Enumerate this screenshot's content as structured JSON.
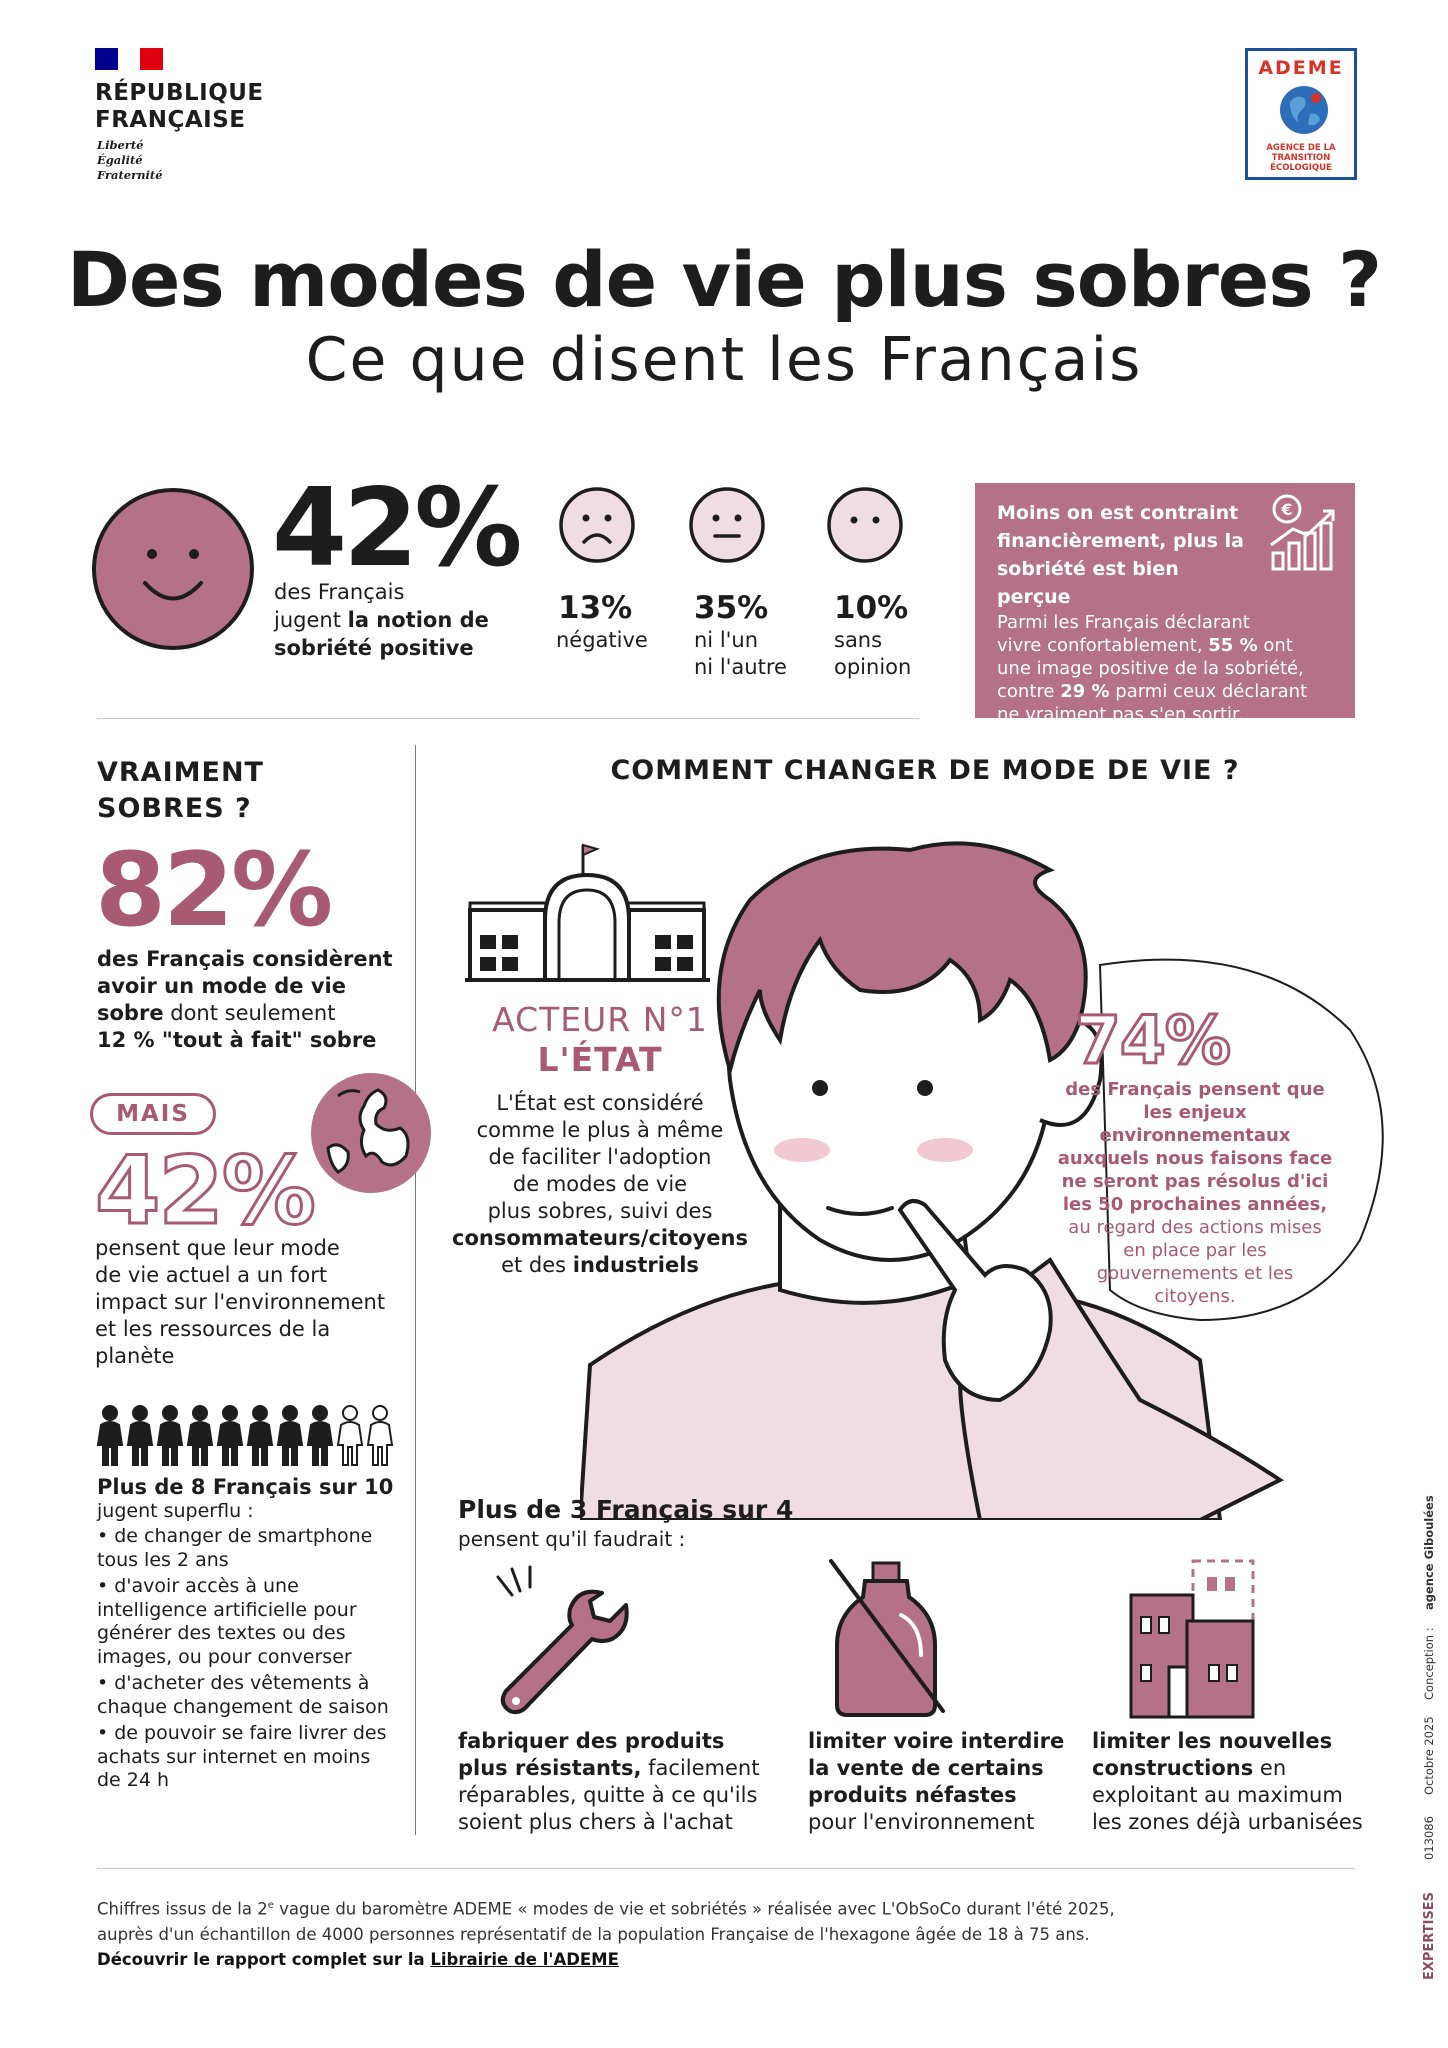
{
  "header": {
    "republic_title_line1": "RÉPUBLIQUE",
    "republic_title_line2": "FRANÇAISE",
    "motto_1": "Liberté",
    "motto_2": "Égalité",
    "motto_3": "Fraternité",
    "ademe_name": "ADEME",
    "ademe_sub_1": "AGENCE DE LA",
    "ademe_sub_2": "TRANSITION",
    "ademe_sub_3": "ÉCOLOGIQUE",
    "flag_colors": [
      "#000091",
      "#ffffff",
      "#e1000f"
    ]
  },
  "title": {
    "main": "Des modes de vie plus sobres ?",
    "subtitle": "Ce que disent les Français"
  },
  "opinion": {
    "main_value": "42%",
    "main_line1": "des Français",
    "main_line2_a": "jugent ",
    "main_line2_b": "la notion de",
    "main_line3": "sobriété positive",
    "negative_value": "13%",
    "negative_label": "négative",
    "neutral_value": "35%",
    "neutral_label_1": "ni l'un",
    "neutral_label_2": "ni l'autre",
    "none_value": "10%",
    "none_label_1": "sans",
    "none_label_2": "opinion"
  },
  "infobox": {
    "heading": "Moins on est contraint financièrement, plus la sobriété est bien perçue",
    "line1": "Parmi les Français déclarant",
    "line2_a": "vivre confortablement, ",
    "line2_b": "55 %",
    "line2_c": " ont",
    "line3": "une image positive de la sobriété,",
    "line4_a": "contre ",
    "line4_b": "29 %",
    "line4_c": " parmi ceux déclarant",
    "line5": "ne vraiment pas s'en sortir.",
    "euro_symbol": "€"
  },
  "left": {
    "heading_1": "VRAIMENT",
    "heading_2": "SOBRES ?",
    "value_82": "82%",
    "txt82_1": "des Français considèrent",
    "txt82_2": "avoir un mode de vie",
    "txt82_3a": "sobre",
    "txt82_3b": " dont seulement",
    "txt82_4": "12 % \"tout à fait\" sobre",
    "mais": "MAIS",
    "value_42": "42%",
    "txt42_1": "pensent que leur mode",
    "txt42_2": "de vie actuel a un fort",
    "txt42_3": "impact sur l'environnement",
    "txt42_4": "et les ressources de la",
    "txt42_5": "planète",
    "plus8": "Plus de 8 Français sur 10",
    "plus8_sub": "jugent superflu :",
    "bullets": [
      "• de changer de smartphone tous les 2 ans",
      "• d'avoir accès à une intelligence artificielle pour générer des textes ou des images, ou pour converser",
      "• d'acheter des vêtements à chaque changement de saison",
      "• de pouvoir se faire livrer des achats sur internet en moins de 24 h"
    ]
  },
  "center": {
    "heading": "COMMENT CHANGER DE MODE DE VIE ?",
    "acteur": "ACTEUR N°1",
    "etat": "L'ÉTAT",
    "etat_1": "L'État est considéré",
    "etat_2": "comme le plus à même",
    "etat_3": "de faciliter l'adoption",
    "etat_4": "de modes de vie",
    "etat_5": "plus sobres, suivi des",
    "etat_6": "consommateurs/citoyens",
    "etat_7a": "et des ",
    "etat_7b": "industriels",
    "value_74": "74%",
    "txt74_bold": "des Français pensent que les enjeux environnementaux auxquels nous faisons face ne seront pas résolus d'ici les 50 prochaines années,",
    "txt74_light": "au regard des actions mises en place par les gouvernements et les citoyens.",
    "plus3": "Plus de 3 Français sur 4",
    "plus3_sub": "pensent qu'il faudrait :",
    "cap1_1": "fabriquer des produits",
    "cap1_2a": "plus résistants,",
    "cap1_2b": " facilement",
    "cap1_3": "réparables, quitte à ce qu'ils",
    "cap1_4": "soient plus chers à l'achat",
    "cap2_1": "limiter voire interdire",
    "cap2_2": "la vente de certains",
    "cap2_3": "produits néfastes",
    "cap2_4": "pour l'environnement",
    "cap3_1": "limiter les nouvelles",
    "cap3_2a": "constructions",
    "cap3_2b": " en",
    "cap3_3": "exploitant au maximum",
    "cap3_4": "les zones déjà urbanisées"
  },
  "footer": {
    "line1_a": "Chiffres issus de la 2",
    "line1_sup": "e",
    "line1_b": " vague du baromètre ADEME « modes de vie et sobriétés » réalisée avec L'ObSoCo durant l'été 2025,",
    "line2": "auprès d'un échantillon de 4000 personnes représentatif de la population Française de l'hexagone âgée de 18 à 75 ans.",
    "line3_a": "Découvrir le rapport complet sur la ",
    "line3_link": "Librairie de l'ADEME"
  },
  "side": {
    "expertises": "EXPERTISES",
    "ref": "013086",
    "date": "Octobre 2025",
    "conception": "Conception :",
    "agency": "agence Giboulées"
  },
  "colors": {
    "accent": "#a85a73",
    "accent_fill": "#b47188",
    "light_pink": "#f0dde4",
    "blush": "#f2c9d3"
  }
}
